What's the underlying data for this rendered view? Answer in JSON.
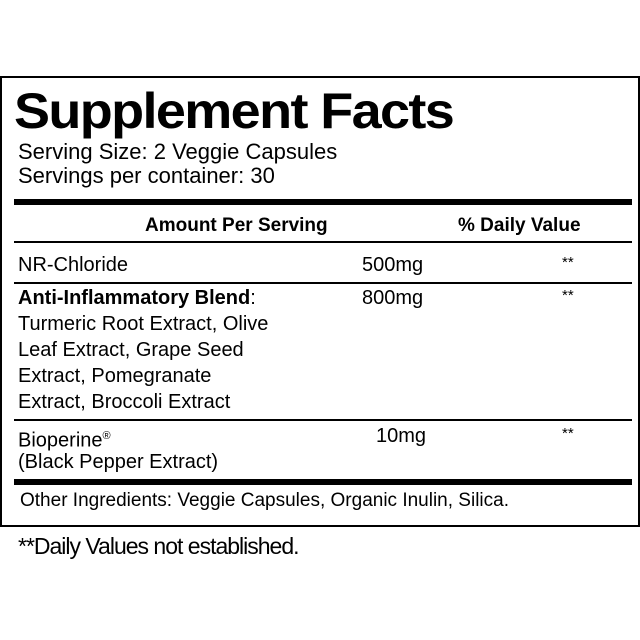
{
  "title": "Supplement Facts",
  "serving_size": "Serving Size: 2 Veggie Capsules",
  "servings_per_container": "Servings per container: 30",
  "header": {
    "amount": "Amount Per Serving",
    "daily_value": "% Daily Value"
  },
  "rows": [
    {
      "name": "NR-Chloride",
      "amount": "500mg",
      "dv": "**"
    },
    {
      "name": "Anti-Inflammatory Blend",
      "suffix": ":",
      "amount": "800mg",
      "dv": "**",
      "details": [
        "Turmeric Root Extract, Olive",
        "Leaf Extract, Grape Seed",
        "Extract, Pomegranate",
        "Extract, Broccoli Extract"
      ]
    },
    {
      "name": "Bioperine",
      "mark": "®",
      "detail": "(Black Pepper Extract)",
      "amount": "10mg",
      "dv": "**"
    }
  ],
  "other_ingredients": "Other Ingredients: Veggie Capsules, Organic Inulin, Silica.",
  "footnote": "**Daily Values not established."
}
